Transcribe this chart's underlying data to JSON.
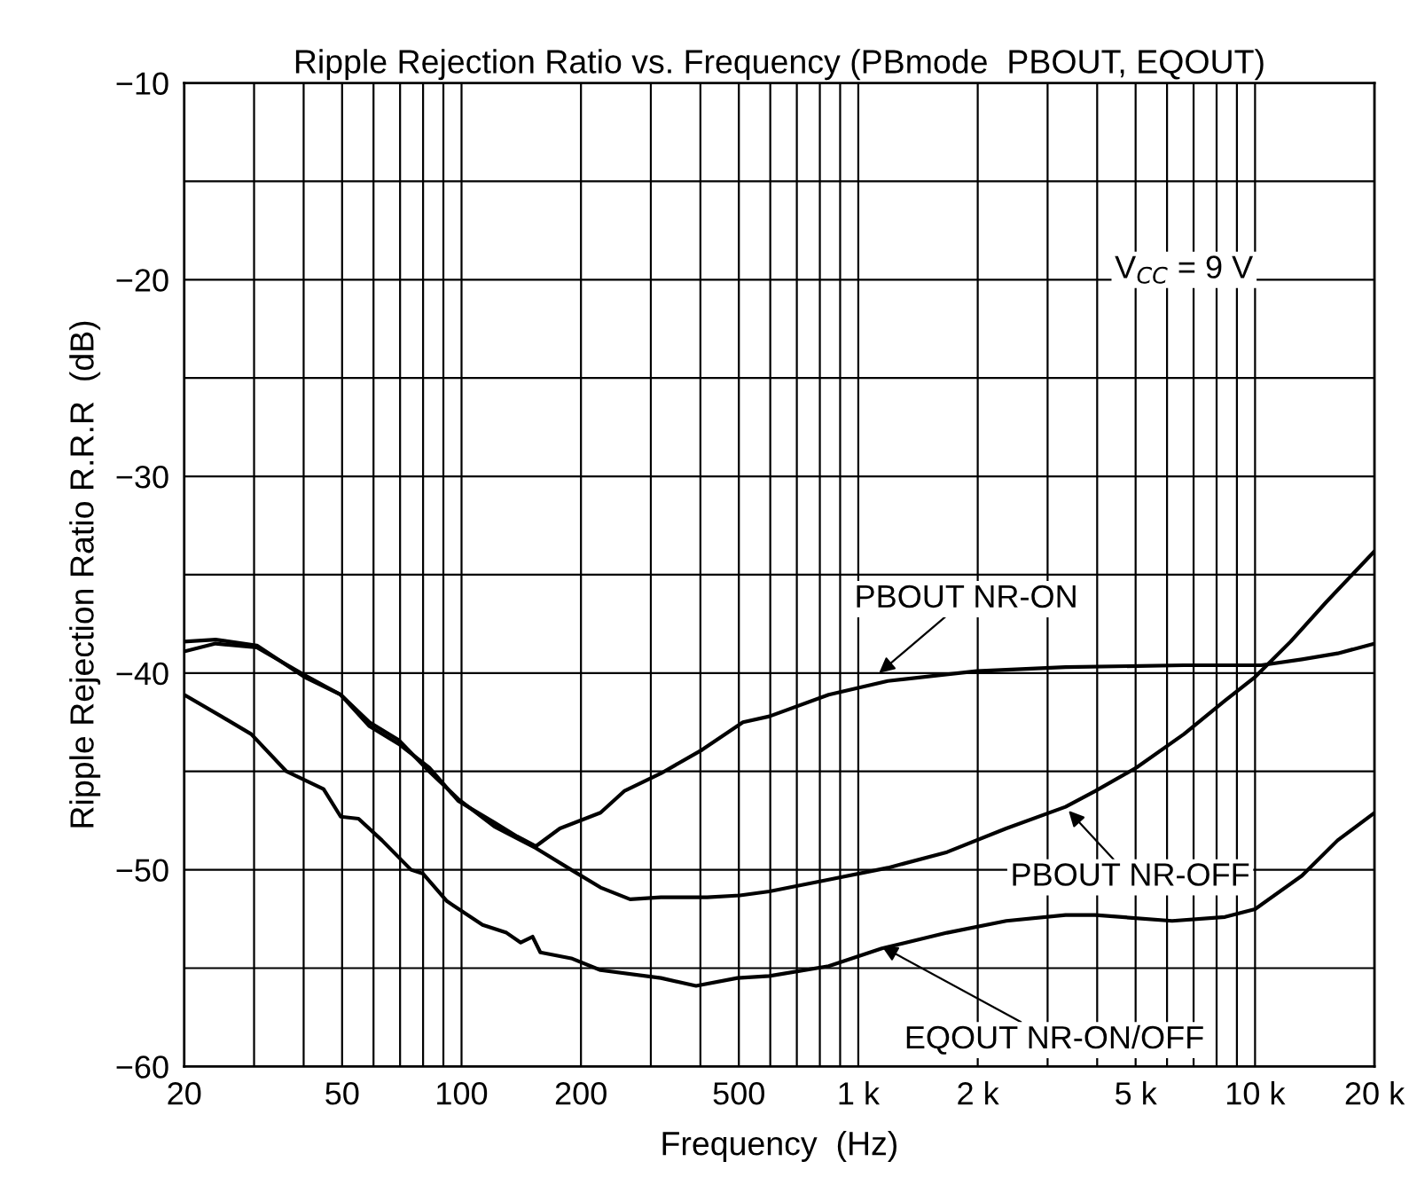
{
  "chart_data": {
    "type": "line",
    "title": "Ripple Rejection Ratio vs. Frequency (PBmode  PBOUT, EQOUT)",
    "xlabel": "Frequency  (Hz)",
    "ylabel": "Ripple Rejection Ratio R.R.R  (dB)",
    "log": "x",
    "grid": true,
    "legend": false,
    "marker": "none",
    "line_style": "solid",
    "xlim": [
      20,
      20000
    ],
    "ylim": [
      -60,
      -10
    ],
    "xticks": [
      20,
      {
        "value": 30,
        "label": null
      },
      {
        "value": 40,
        "label": null
      },
      50,
      {
        "value": 60,
        "label": null
      },
      {
        "value": 70,
        "label": null
      },
      {
        "value": 80,
        "label": null
      },
      {
        "value": 90,
        "label": null
      },
      100,
      200,
      {
        "value": 300,
        "label": null
      },
      {
        "value": 400,
        "label": null
      },
      500,
      {
        "value": 600,
        "label": null
      },
      {
        "value": 700,
        "label": null
      },
      {
        "value": 800,
        "label": null
      },
      {
        "value": 900,
        "label": null
      },
      {
        "value": 1000,
        "label": "1 k"
      },
      {
        "value": 2000,
        "label": "2 k"
      },
      {
        "value": 3000,
        "label": null
      },
      {
        "value": 4000,
        "label": null
      },
      {
        "value": 5000,
        "label": "5 k"
      },
      {
        "value": 6000,
        "label": null
      },
      {
        "value": 7000,
        "label": null
      },
      {
        "value": 8000,
        "label": null
      },
      {
        "value": 9000,
        "label": null
      },
      {
        "value": 10000,
        "label": "10 k"
      },
      {
        "value": 20000,
        "label": "20 k"
      }
    ],
    "yticks": [
      {
        "value": -60,
        "label": "−60"
      },
      {
        "value": -55,
        "label": null
      },
      {
        "value": -50,
        "label": "−50"
      },
      {
        "value": -45,
        "label": null
      },
      {
        "value": -40,
        "label": "−40"
      },
      {
        "value": -35,
        "label": null
      },
      {
        "value": -30,
        "label": "−30"
      },
      {
        "value": -25,
        "label": null
      },
      {
        "value": -20,
        "label": "−20"
      },
      {
        "value": -15,
        "label": null
      },
      {
        "value": -10,
        "label": "−10"
      }
    ],
    "series": [
      {
        "color": "#000000",
        "x": [
          20,
          24,
          30.5,
          40.2,
          49.6,
          58.6,
          69.4,
          82.9,
          98.1,
          121,
          138,
          154,
          177,
          224,
          257,
          318,
          404,
          512,
          597,
          842,
          1187,
          1987,
          3330,
          6620,
          10360,
          13130,
          16150,
          20000
        ],
        "values": [
          -38.4,
          -38.3,
          -38.6,
          -40.2,
          -41.1,
          -42.7,
          -43.6,
          -44.8,
          -46.5,
          -47.6,
          -48.3,
          -48.8,
          -47.9,
          -47.1,
          -46.0,
          -45.1,
          -43.9,
          -42.5,
          -42.2,
          -41.1,
          -40.4,
          -39.9,
          -39.7,
          -39.6,
          -39.6,
          -39.3,
          -39.0,
          -38.5
        ]
      },
      {
        "color": "#000000",
        "x": [
          20,
          24,
          30.5,
          40.2,
          49.6,
          58.6,
          69.4,
          82.9,
          98.1,
          121,
          138,
          154,
          189,
          224,
          266,
          318,
          416,
          503,
          597,
          842,
          1187,
          1674,
          2360,
          3330,
          3955,
          5030,
          6620,
          8400,
          10000,
          12290,
          15100,
          20000
        ],
        "values": [
          -38.9,
          -38.5,
          -38.7,
          -40.1,
          -41.1,
          -42.5,
          -43.4,
          -45.0,
          -46.4,
          -47.8,
          -48.4,
          -48.9,
          -50.0,
          -50.9,
          -51.5,
          -51.4,
          -51.4,
          -51.3,
          -51.1,
          -50.5,
          -49.9,
          -49.1,
          -47.9,
          -46.8,
          -46.0,
          -44.8,
          -43.1,
          -41.4,
          -40.2,
          -38.4,
          -36.4,
          -33.8
        ]
      },
      {
        "color": "#000000",
        "x": [
          20,
          24.8,
          29.5,
          36.2,
          44.9,
          49.6,
          55,
          63,
          74.6,
          80,
          91.9,
          113,
          129.8,
          141,
          151,
          158,
          189,
          224,
          318,
          390,
          496,
          597,
          842,
          1147,
          1674,
          2360,
          3330,
          3955,
          6180,
          8400,
          10000,
          13130,
          16150,
          20000
        ],
        "values": [
          -41.1,
          -42.2,
          -43.1,
          -45.0,
          -45.9,
          -47.3,
          -47.4,
          -48.5,
          -50.0,
          -50.2,
          -51.6,
          -52.8,
          -53.2,
          -53.7,
          -53.4,
          -54.2,
          -54.5,
          -55.1,
          -55.5,
          -55.9,
          -55.5,
          -55.4,
          -54.9,
          -54.0,
          -53.2,
          -52.6,
          -52.3,
          -52.3,
          -52.6,
          -52.4,
          -52.0,
          -50.3,
          -48.5,
          -47.1
        ]
      }
    ],
    "annotations": [
      {
        "text": "PBOUT NR-ON",
        "x": 1128,
        "y": -40.0
      },
      {
        "text": "PBOUT NR-OFF",
        "x": 3390,
        "y": -47.0
      },
      {
        "text": "EQOUT NR-ON/OFF",
        "x": 1147,
        "y": -53.9
      },
      "V$_{CC}$ = 9 V"
    ]
  }
}
